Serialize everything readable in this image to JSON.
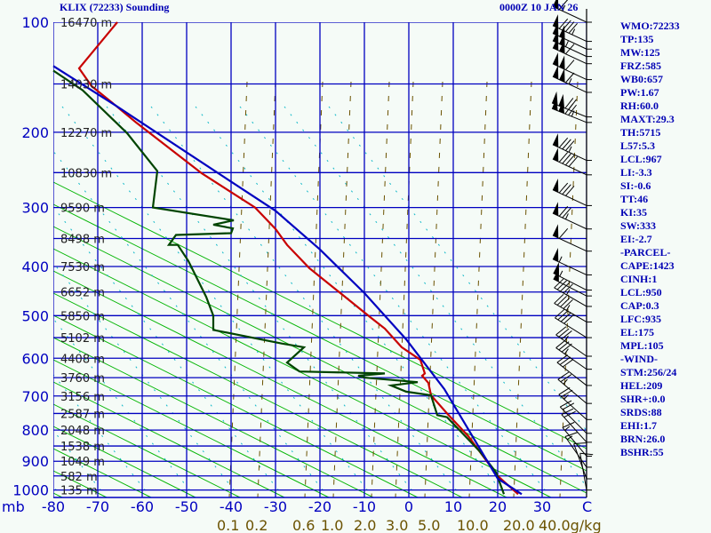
{
  "chart_data": {
    "type": "line",
    "title": "KLIX (72233) Sounding",
    "valid_time": "0000Z 10 JAN 26",
    "xlabel": "C",
    "ylabel": "mb",
    "xlim": [
      -80,
      40
    ],
    "ylim": [
      1000,
      100
    ],
    "x_ticks": [
      -80,
      -70,
      -60,
      -50,
      -40,
      -30,
      -20,
      -10,
      0,
      10,
      20,
      30
    ],
    "x_tick_labels": [
      "-80",
      "-70",
      "-60",
      "-50",
      "-40",
      "-30",
      "-20",
      "-10",
      "0",
      "10",
      "20",
      "30"
    ],
    "unit_label": "C",
    "pressure_label_levels": [
      "100",
      "200",
      "300",
      "400",
      "500",
      "600",
      "700",
      "800",
      "900",
      "1000"
    ],
    "isobars": [
      {
        "p": 100,
        "height": "16470 m"
      },
      {
        "p": 150,
        "height": "14030 m"
      },
      {
        "p": 200,
        "height": "12270 m"
      },
      {
        "p": 250,
        "height": "10830 m"
      },
      {
        "p": 300,
        "height": "9590 m"
      },
      {
        "p": 350,
        "height": "8498 m"
      },
      {
        "p": 400,
        "height": "7530 m"
      },
      {
        "p": 450,
        "height": "6652 m"
      },
      {
        "p": 500,
        "height": "5850 m"
      },
      {
        "p": 550,
        "height": "5102 m"
      },
      {
        "p": 600,
        "height": "4408 m"
      },
      {
        "p": 650,
        "height": "3760 m"
      },
      {
        "p": 700,
        "height": "3156 m"
      },
      {
        "p": 750,
        "height": "2587 m"
      },
      {
        "p": 800,
        "height": "2048 m"
      },
      {
        "p": 850,
        "height": "1538 m"
      },
      {
        "p": 900,
        "height": "1049 m"
      },
      {
        "p": 950,
        "height": "582 m"
      },
      {
        "p": 1000,
        "height": "135 m"
      }
    ],
    "mixing_ratio_labels": [
      "0.1",
      "0.2",
      "0.6",
      "1.0",
      "2.0",
      "3.0",
      "5.0",
      "10.0",
      "20.0",
      "40.0g/kg"
    ],
    "series": [
      {
        "name": "Temperature",
        "color": "#c80000",
        "points": [
          [
            100,
            -65.6
          ],
          [
            136,
            -74.2
          ],
          [
            152,
            -71.4
          ],
          [
            171,
            -66
          ],
          [
            189,
            -61.4
          ],
          [
            251,
            -46.6
          ],
          [
            300,
            -34.6
          ],
          [
            334,
            -30
          ],
          [
            361,
            -27.4
          ],
          [
            403,
            -22.4
          ],
          [
            467,
            -13.4
          ],
          [
            504,
            -8.6
          ],
          [
            529,
            -5.4
          ],
          [
            573,
            -1.6
          ],
          [
            604,
            2.6
          ],
          [
            639,
            3.6
          ],
          [
            645,
            3
          ],
          [
            664,
            4.4
          ],
          [
            698,
            5
          ],
          [
            750,
            8.6
          ],
          [
            819,
            13.4
          ],
          [
            950,
            20
          ],
          [
            1015,
            24.6
          ]
        ]
      },
      {
        "name": "Dewpoint",
        "color": "#004400",
        "points": [
          [
            138,
            -80
          ],
          [
            156,
            -73.4
          ],
          [
            201,
            -63.4
          ],
          [
            248,
            -56.6
          ],
          [
            300,
            -57.6
          ],
          [
            320,
            -39.4
          ],
          [
            327,
            -44
          ],
          [
            333,
            -39.6
          ],
          [
            341,
            -40
          ],
          [
            344,
            -52.4
          ],
          [
            361,
            -54
          ],
          [
            361,
            -52
          ],
          [
            390,
            -49.6
          ],
          [
            460,
            -45.6
          ],
          [
            500,
            -44
          ],
          [
            532,
            -44
          ],
          [
            564,
            -28.6
          ],
          [
            573,
            -23.6
          ],
          [
            611,
            -27.4
          ],
          [
            634,
            -24.6
          ],
          [
            639,
            -5.4
          ],
          [
            645,
            -11.4
          ],
          [
            650,
            -10
          ],
          [
            662,
            2
          ],
          [
            671,
            -4
          ],
          [
            688,
            -0.6
          ],
          [
            698,
            5
          ],
          [
            755,
            6.4
          ],
          [
            761,
            8.6
          ],
          [
            868,
            16
          ],
          [
            937,
            19.6
          ],
          [
            1015,
            21.4
          ]
        ]
      },
      {
        "name": "Parcel",
        "color": "#0000c0",
        "points": [
          [
            134,
            -80
          ],
          [
            171,
            -66
          ],
          [
            224,
            -50
          ],
          [
            305,
            -30
          ],
          [
            369,
            -20
          ],
          [
            452,
            -10
          ],
          [
            554,
            -0.6
          ],
          [
            681,
            8
          ],
          [
            723,
            10
          ],
          [
            959,
            20
          ],
          [
            1015,
            25.4
          ]
        ]
      }
    ],
    "winds": [
      {
        "p": 100,
        "dir": 245,
        "spd": 65
      },
      {
        "p": 114,
        "dir": 245,
        "spd": 95
      },
      {
        "p": 120,
        "dir": 245,
        "spd": 100
      },
      {
        "p": 126,
        "dir": 245,
        "spd": 105
      },
      {
        "p": 132,
        "dir": 245,
        "spd": 110
      },
      {
        "p": 146,
        "dir": 245,
        "spd": 110
      },
      {
        "p": 158,
        "dir": 245,
        "spd": 115
      },
      {
        "p": 183,
        "dir": 248,
        "spd": 120
      },
      {
        "p": 189,
        "dir": 248,
        "spd": 125
      },
      {
        "p": 234,
        "dir": 245,
        "spd": 85
      },
      {
        "p": 253,
        "dir": 245,
        "spd": 90
      },
      {
        "p": 297,
        "dir": 245,
        "spd": 80
      },
      {
        "p": 334,
        "dir": 245,
        "spd": 75
      },
      {
        "p": 372,
        "dir": 245,
        "spd": 60
      },
      {
        "p": 416,
        "dir": 245,
        "spd": 55
      },
      {
        "p": 446,
        "dir": 243,
        "spd": 55
      },
      {
        "p": 458,
        "dir": 243,
        "spd": 50
      },
      {
        "p": 480,
        "dir": 240,
        "spd": 45
      },
      {
        "p": 514,
        "dir": 240,
        "spd": 45
      },
      {
        "p": 550,
        "dir": 238,
        "spd": 40
      },
      {
        "p": 595,
        "dir": 235,
        "spd": 35
      },
      {
        "p": 628,
        "dir": 235,
        "spd": 35
      },
      {
        "p": 671,
        "dir": 232,
        "spd": 30
      },
      {
        "p": 721,
        "dir": 230,
        "spd": 25
      },
      {
        "p": 768,
        "dir": 228,
        "spd": 25
      },
      {
        "p": 810,
        "dir": 225,
        "spd": 20
      },
      {
        "p": 838,
        "dir": 222,
        "spd": 20
      },
      {
        "p": 883,
        "dir": 220,
        "spd": 15
      },
      {
        "p": 920,
        "dir": 215,
        "spd": 15
      },
      {
        "p": 960,
        "dir": 200,
        "spd": 10
      },
      {
        "p": 1000,
        "dir": 190,
        "spd": 10
      }
    ]
  },
  "indices": [
    "WMO:72233",
    "TP:135",
    "MW:125",
    "FRZ:585",
    "WB0:657",
    "PW:1.67",
    "RH:60.0",
    "MAXT:29.3",
    "TH:5715",
    "L57:5.3",
    "LCL:967",
    "LI:-3.3",
    "SI:-0.6",
    "TT:46",
    "KI:35",
    "SW:333",
    "EI:-2.7",
    "-PARCEL-",
    "CAPE:1423",
    "CINH:1",
    "LCL:950",
    "CAP:0.3",
    "LFC:935",
    "EL:175",
    "MPL:105",
    "-WIND-",
    "STM:256/24",
    "HEL:209",
    "SHR+:0.0",
    "SRDS:88",
    "EHI:1.7",
    "BRN:26.0",
    "BSHR:55"
  ]
}
